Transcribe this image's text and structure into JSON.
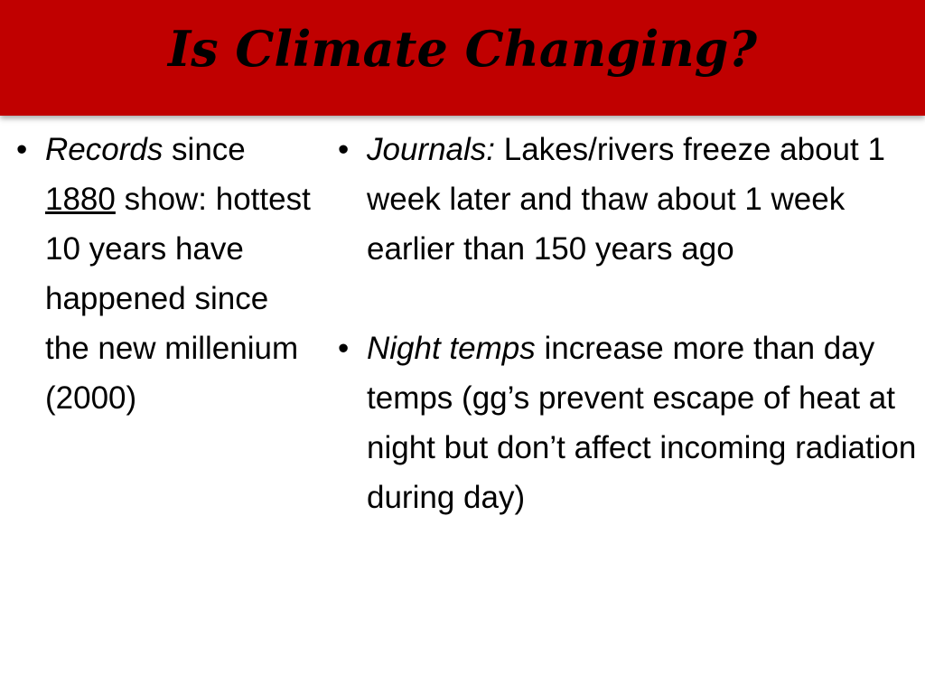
{
  "slide": {
    "title": "Is Climate Changing?",
    "bullet_char": "•",
    "left_column": {
      "item1": {
        "emph": "Records",
        "text_a": " since ",
        "underlined": "1880",
        "text_b": " show: hottest 10 years have happened since the new millenium (2000)"
      }
    },
    "right_column": {
      "item1": {
        "emph": "Journals:",
        "text": " Lakes/rivers freeze about 1 week later and thaw about 1 week earlier than 150 years ago"
      },
      "item2": {
        "emph": "Night temps",
        "text": " increase more than day temps (gg’s prevent escape of heat at night but don’t affect incoming radiation during day)"
      }
    }
  },
  "colors": {
    "header": "#c00000",
    "title": "#000000",
    "body_text": "#000000",
    "background": "#ffffff"
  }
}
